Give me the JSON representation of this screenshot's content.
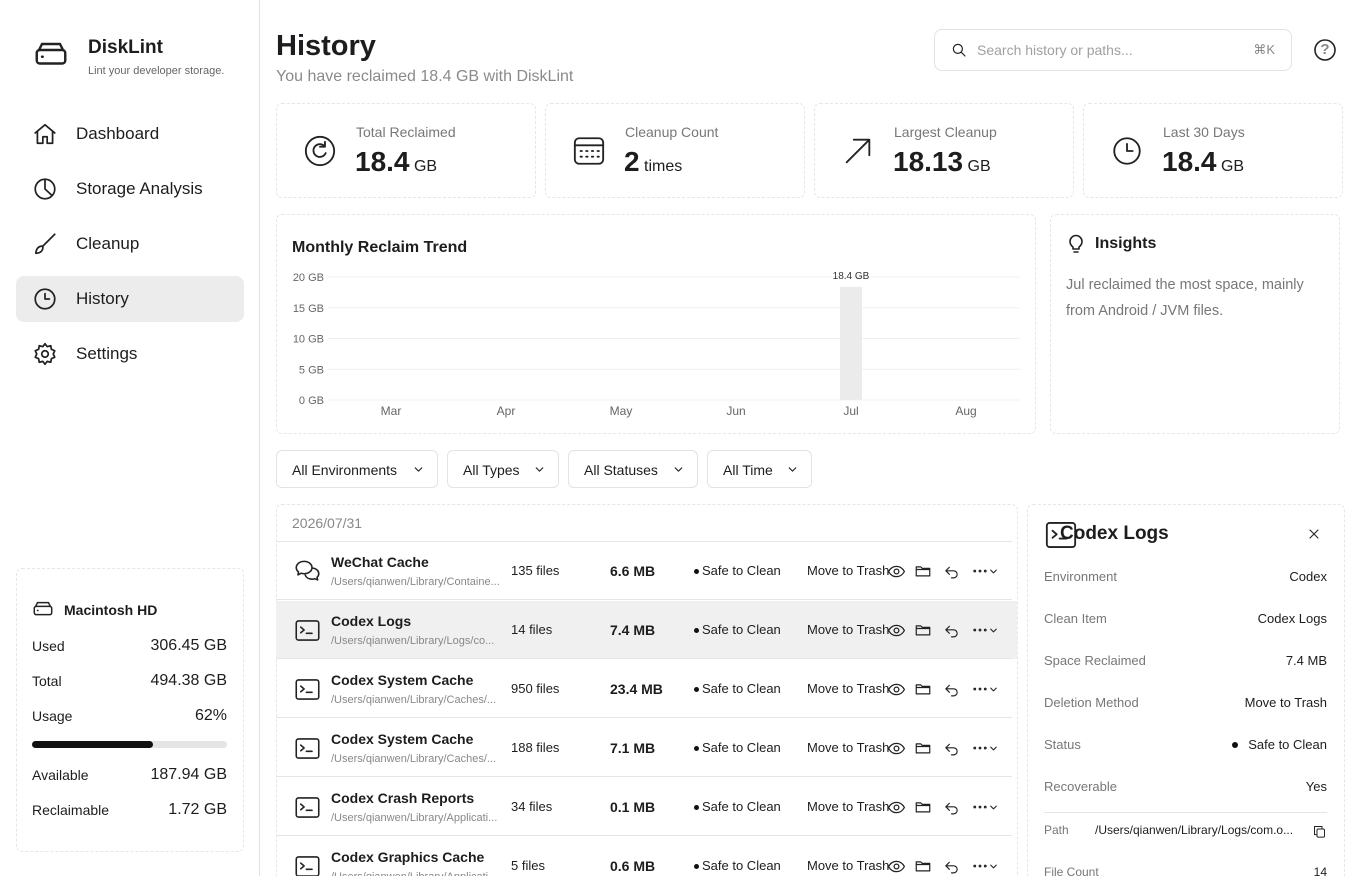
{
  "sidebar": {
    "app_name": "DiskLint",
    "tagline": "Lint your developer storage.",
    "nav": [
      "Dashboard",
      "Storage Analysis",
      "Cleanup",
      "History",
      "Settings"
    ]
  },
  "disk": {
    "name": "Macintosh HD",
    "rows_top": [
      {
        "label": "Used",
        "value": "306.45 GB"
      },
      {
        "label": "Total",
        "value": "494.38 GB"
      }
    ],
    "usage": {
      "label": "Usage",
      "value": 62,
      "value_label": "62%"
    },
    "rows_bottom": [
      {
        "label": "Available",
        "value": "187.94 GB"
      },
      {
        "label": "Reclaimable",
        "value": "1.72 GB"
      }
    ]
  },
  "header": {
    "title": "History",
    "subtitle": "You have reclaimed 18.4 GB with DiskLint",
    "search_placeholder": "Search history or paths...",
    "shortcut": "⌘K",
    "help": "?"
  },
  "stats": [
    {
      "label": "Total Reclaimed",
      "value": "18.4",
      "unit": "GB"
    },
    {
      "label": "Cleanup Count",
      "value": "2",
      "unit": "times"
    },
    {
      "label": "Largest Cleanup",
      "value": "18.13",
      "unit": "GB"
    },
    {
      "label": "Last 30 Days",
      "value": "18.4",
      "unit": "GB"
    }
  ],
  "chart_data": {
    "type": "bar",
    "title": "Monthly Reclaim Trend",
    "categories": [
      "Mar",
      "Apr",
      "May",
      "Jun",
      "Jul",
      "Aug"
    ],
    "values": [
      0,
      0,
      0,
      0,
      18.4,
      0
    ],
    "value_labels": [
      null,
      null,
      null,
      null,
      "18.4 GB",
      null
    ],
    "color": "#ebebeb",
    "ylim": [
      0,
      20
    ],
    "yticks": [
      {
        "value": 0,
        "label": "0 GB"
      },
      {
        "value": 5,
        "label": "5 GB"
      },
      {
        "value": 10,
        "label": "10 GB"
      },
      {
        "value": 15,
        "label": "15 GB"
      },
      {
        "value": 20,
        "label": "20 GB"
      }
    ],
    "grid": true
  },
  "insights": {
    "title": "Insights",
    "text": "Jul reclaimed the most space, mainly from Android / JVM files."
  },
  "filters": [
    "All Environments",
    "All Types",
    "All Statuses",
    "All Time"
  ],
  "list": {
    "date": "2026/07/31",
    "rows": [
      {
        "name": "WeChat Cache",
        "path": "/Users/qianwen/Library/Containe...",
        "files": "135 files",
        "size": "6.6 MB",
        "status": "Safe to Clean",
        "method": "Move to Trash"
      },
      {
        "name": "Codex Logs",
        "path": "/Users/qianwen/Library/Logs/co...",
        "files": "14 files",
        "size": "7.4 MB",
        "status": "Safe to Clean",
        "method": "Move to Trash"
      },
      {
        "name": "Codex System Cache",
        "path": "/Users/qianwen/Library/Caches/...",
        "files": "950 files",
        "size": "23.4 MB",
        "status": "Safe to Clean",
        "method": "Move to Trash"
      },
      {
        "name": "Codex System Cache",
        "path": "/Users/qianwen/Library/Caches/...",
        "files": "188 files",
        "size": "7.1 MB",
        "status": "Safe to Clean",
        "method": "Move to Trash"
      },
      {
        "name": "Codex Crash Reports",
        "path": "/Users/qianwen/Library/Applicati...",
        "files": "34 files",
        "size": "0.1 MB",
        "status": "Safe to Clean",
        "method": "Move to Trash"
      },
      {
        "name": "Codex Graphics Cache",
        "path": "/Users/qianwen/Library/Applicati...",
        "files": "5 files",
        "size": "0.6 MB",
        "status": "Safe to Clean",
        "method": "Move to Trash"
      }
    ]
  },
  "detail": {
    "title": "Codex Logs",
    "fields": [
      {
        "label": "Environment",
        "value": "Codex"
      },
      {
        "label": "Clean Item",
        "value": "Codex Logs"
      },
      {
        "label": "Space Reclaimed",
        "value": "7.4 MB"
      },
      {
        "label": "Deletion Method",
        "value": "Move to Trash"
      },
      {
        "label": "Status",
        "value": "Safe to Clean"
      },
      {
        "label": "Recoverable",
        "value": "Yes"
      }
    ],
    "path_label": "Path",
    "path_value": "/Users/qianwen/Library/Logs/com.o...",
    "count_label": "File Count",
    "count_value": "14"
  }
}
